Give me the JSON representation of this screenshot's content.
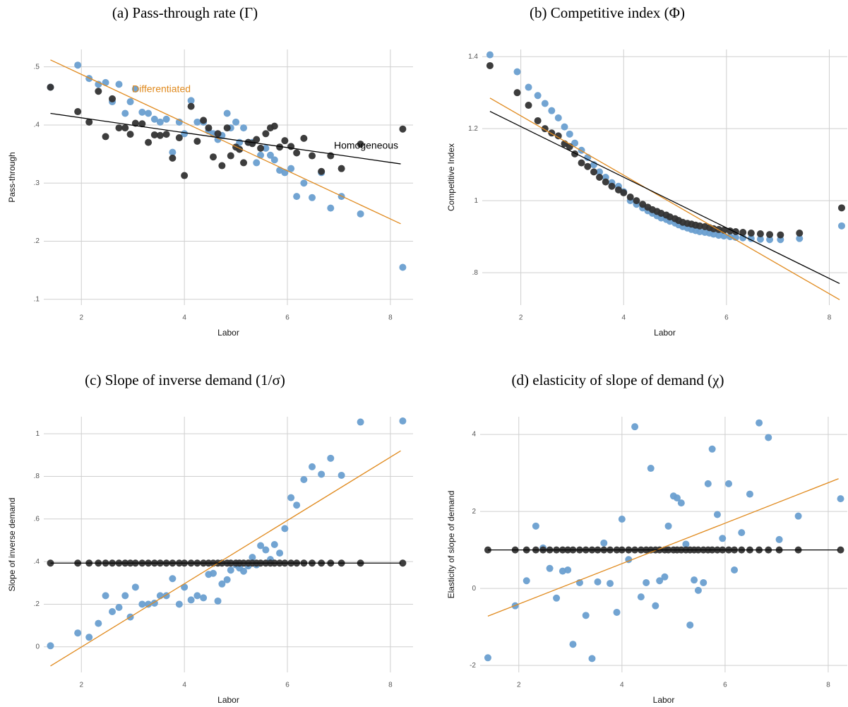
{
  "chart_data": [
    {
      "type": "scatter",
      "title": "(a) Pass-through rate (Γ)",
      "xlabel": "Labor",
      "ylabel": "Pass-through",
      "xlim": [
        1.27,
        8.44
      ],
      "ylim": [
        0.09,
        0.53
      ],
      "xticks": [
        2,
        4,
        6,
        8
      ],
      "yticks": [
        {
          "value": 0.1,
          "label": ".1"
        },
        {
          "value": 0.2,
          "label": ".2"
        },
        {
          "value": 0.3,
          "label": ".3"
        },
        {
          "value": 0.4,
          "label": ".4"
        },
        {
          "value": 0.5,
          "label": ".5"
        }
      ],
      "grid": true,
      "x": [
        1.4,
        1.93,
        2.15,
        2.33,
        2.47,
        2.6,
        2.73,
        2.85,
        2.95,
        3.05,
        3.18,
        3.3,
        3.42,
        3.53,
        3.65,
        3.77,
        3.9,
        4.0,
        4.13,
        4.25,
        4.37,
        4.47,
        4.56,
        4.65,
        4.73,
        4.83,
        4.9,
        5.0,
        5.07,
        5.15,
        5.24,
        5.32,
        5.4,
        5.48,
        5.58,
        5.67,
        5.75,
        5.85,
        5.95,
        6.07,
        6.18,
        6.32,
        6.48,
        6.66,
        6.84,
        7.05,
        7.42,
        8.24
      ],
      "series": [
        {
          "color": "#6a9fd0",
          "values": [
            0.465,
            0.503,
            0.48,
            0.47,
            0.473,
            0.44,
            0.47,
            0.42,
            0.44,
            0.462,
            0.422,
            0.42,
            0.41,
            0.405,
            0.41,
            0.353,
            0.405,
            0.385,
            0.442,
            0.405,
            0.405,
            0.39,
            0.385,
            0.375,
            0.382,
            0.42,
            0.395,
            0.405,
            0.37,
            0.395,
            0.37,
            0.37,
            0.335,
            0.348,
            0.36,
            0.348,
            0.34,
            0.322,
            0.318,
            0.325,
            0.277,
            0.3,
            0.275,
            0.318,
            0.257,
            0.277,
            0.247,
            0.155
          ]
        },
        {
          "color": "#333333",
          "values": [
            0.465,
            0.423,
            0.405,
            0.458,
            0.38,
            0.445,
            0.395,
            0.395,
            0.384,
            0.403,
            0.402,
            0.37,
            0.383,
            0.382,
            0.384,
            0.343,
            0.378,
            0.313,
            0.432,
            0.372,
            0.408,
            0.395,
            0.345,
            0.385,
            0.33,
            0.395,
            0.347,
            0.362,
            0.358,
            0.335,
            0.37,
            0.368,
            0.375,
            0.36,
            0.385,
            0.395,
            0.398,
            0.362,
            0.373,
            0.363,
            0.352,
            0.377,
            0.347,
            0.32,
            0.347,
            0.325,
            0.367,
            0.393
          ]
        },
        {
          "name": "Differentiated",
          "kind": "line",
          "color": "#e08a1e",
          "x": [
            1.4,
            8.2
          ],
          "values": [
            0.512,
            0.23
          ]
        },
        {
          "name": "Homogeneous",
          "kind": "line",
          "color": "#000000",
          "x": [
            1.4,
            8.2
          ],
          "values": [
            0.42,
            0.333
          ]
        }
      ]
    },
    {
      "type": "scatter",
      "title": "(b) Competitive index (Φ)",
      "xlabel": "Labor",
      "ylabel": "Competitive Index",
      "xlim": [
        1.25,
        8.35
      ],
      "ylim": [
        0.71,
        1.42
      ],
      "xticks": [
        2,
        4,
        6,
        8
      ],
      "yticks": [
        {
          "value": 0.8,
          "label": ".8"
        },
        1,
        1.2,
        1.4
      ],
      "grid": true,
      "x": [
        1.4,
        1.93,
        2.15,
        2.33,
        2.47,
        2.6,
        2.73,
        2.85,
        2.95,
        3.05,
        3.18,
        3.3,
        3.42,
        3.53,
        3.65,
        3.77,
        3.9,
        4.0,
        4.13,
        4.25,
        4.37,
        4.47,
        4.56,
        4.65,
        4.73,
        4.83,
        4.9,
        5.0,
        5.07,
        5.15,
        5.24,
        5.32,
        5.4,
        5.48,
        5.58,
        5.67,
        5.75,
        5.85,
        5.95,
        6.07,
        6.18,
        6.32,
        6.48,
        6.66,
        6.84,
        7.05,
        7.42,
        8.24
      ],
      "series": [
        {
          "color": "#6a9fd0",
          "values": [
            1.405,
            1.358,
            1.315,
            1.292,
            1.27,
            1.25,
            1.23,
            1.205,
            1.185,
            1.16,
            1.14,
            1.12,
            1.1,
            1.08,
            1.065,
            1.05,
            1.04,
            1.025,
            1.0,
            0.99,
            0.98,
            0.972,
            0.965,
            0.958,
            0.952,
            0.948,
            0.943,
            0.938,
            0.933,
            0.928,
            0.924,
            0.92,
            0.917,
            0.914,
            0.912,
            0.91,
            0.907,
            0.904,
            0.902,
            0.9,
            0.898,
            0.897,
            0.895,
            0.893,
            0.892,
            0.892,
            0.895,
            0.93
          ]
        },
        {
          "color": "#333333",
          "values": [
            1.375,
            1.3,
            1.265,
            1.222,
            1.2,
            1.188,
            1.18,
            1.158,
            1.15,
            1.13,
            1.105,
            1.095,
            1.08,
            1.065,
            1.052,
            1.04,
            1.03,
            1.022,
            1.01,
            1.0,
            0.99,
            0.982,
            0.975,
            0.97,
            0.965,
            0.96,
            0.955,
            0.95,
            0.945,
            0.94,
            0.937,
            0.935,
            0.932,
            0.93,
            0.928,
            0.925,
            0.922,
            0.92,
            0.918,
            0.916,
            0.914,
            0.912,
            0.91,
            0.908,
            0.906,
            0.905,
            0.91,
            0.98
          ]
        },
        {
          "kind": "line",
          "color": "#e08a1e",
          "x": [
            1.4,
            8.2
          ],
          "values": [
            1.285,
            0.725
          ]
        },
        {
          "kind": "line",
          "color": "#000000",
          "x": [
            1.4,
            8.2
          ],
          "values": [
            1.248,
            0.77
          ]
        }
      ]
    },
    {
      "type": "scatter",
      "title": "(c) Slope of inverse demand (1/σ)",
      "xlabel": "Labor",
      "ylabel": "Slope of inverse demand",
      "xlim": [
        1.27,
        8.44
      ],
      "ylim": [
        -0.12,
        1.08
      ],
      "xticks": [
        2,
        4,
        6,
        8
      ],
      "yticks": [
        0,
        {
          "value": 0.2,
          "label": ".2"
        },
        {
          "value": 0.4,
          "label": ".4"
        },
        {
          "value": 0.6,
          "label": ".6"
        },
        {
          "value": 0.8,
          "label": ".8"
        },
        1
      ],
      "grid": true,
      "x": [
        1.4,
        1.93,
        2.15,
        2.33,
        2.47,
        2.6,
        2.73,
        2.85,
        2.95,
        3.05,
        3.18,
        3.3,
        3.42,
        3.53,
        3.65,
        3.77,
        3.9,
        4.0,
        4.13,
        4.25,
        4.37,
        4.47,
        4.56,
        4.65,
        4.73,
        4.83,
        4.9,
        5.0,
        5.07,
        5.15,
        5.24,
        5.32,
        5.4,
        5.48,
        5.58,
        5.67,
        5.75,
        5.85,
        5.95,
        6.07,
        6.18,
        6.32,
        6.48,
        6.66,
        6.84,
        7.05,
        7.42,
        8.24
      ],
      "series": [
        {
          "color": "#6a9fd0",
          "values": [
            0.005,
            0.065,
            0.045,
            0.11,
            0.24,
            0.165,
            0.185,
            0.24,
            0.14,
            0.28,
            0.2,
            0.2,
            0.205,
            0.24,
            0.24,
            0.32,
            0.2,
            0.28,
            0.22,
            0.24,
            0.23,
            0.34,
            0.345,
            0.215,
            0.295,
            0.315,
            0.36,
            0.385,
            0.37,
            0.355,
            0.38,
            0.42,
            0.385,
            0.475,
            0.455,
            0.41,
            0.48,
            0.44,
            0.555,
            0.7,
            0.665,
            0.785,
            0.845,
            0.81,
            0.885,
            0.805,
            1.055,
            1.06
          ]
        },
        {
          "color": "#333333",
          "values": [
            0.393,
            0.393,
            0.393,
            0.393,
            0.393,
            0.393,
            0.393,
            0.393,
            0.393,
            0.393,
            0.393,
            0.393,
            0.393,
            0.393,
            0.393,
            0.393,
            0.393,
            0.393,
            0.393,
            0.393,
            0.393,
            0.393,
            0.393,
            0.393,
            0.393,
            0.393,
            0.393,
            0.393,
            0.393,
            0.393,
            0.393,
            0.393,
            0.393,
            0.393,
            0.393,
            0.393,
            0.393,
            0.393,
            0.393,
            0.393,
            0.393,
            0.393,
            0.393,
            0.393,
            0.393,
            0.393,
            0.393,
            0.393
          ]
        },
        {
          "kind": "line",
          "color": "#e08a1e",
          "x": [
            1.4,
            8.2
          ],
          "values": [
            -0.09,
            0.92
          ]
        },
        {
          "kind": "line",
          "color": "#000000",
          "x": [
            1.4,
            8.2
          ],
          "values": [
            0.393,
            0.393
          ]
        }
      ]
    },
    {
      "type": "scatter",
      "title": "(d) elasticity of slope of demand (χ)",
      "xlabel": "Labor",
      "ylabel": "Elasticity of slope of demand",
      "xlim": [
        1.25,
        8.37
      ],
      "ylim": [
        -2.18,
        4.46
      ],
      "xticks": [
        2,
        4,
        6,
        8
      ],
      "yticks": [
        -2,
        0,
        2,
        4
      ],
      "grid": true,
      "x": [
        1.4,
        1.93,
        2.15,
        2.33,
        2.47,
        2.6,
        2.73,
        2.85,
        2.95,
        3.05,
        3.18,
        3.3,
        3.42,
        3.53,
        3.65,
        3.77,
        3.9,
        4.0,
        4.13,
        4.25,
        4.37,
        4.47,
        4.56,
        4.65,
        4.73,
        4.83,
        4.9,
        5.0,
        5.07,
        5.15,
        5.24,
        5.32,
        5.4,
        5.48,
        5.58,
        5.67,
        5.75,
        5.85,
        5.95,
        6.07,
        6.18,
        6.32,
        6.48,
        6.66,
        6.84,
        7.05,
        7.42,
        8.24
      ],
      "series": [
        {
          "color": "#6a9fd0",
          "values": [
            -1.8,
            -0.45,
            0.2,
            1.62,
            1.05,
            0.52,
            -0.25,
            0.45,
            0.48,
            -1.45,
            0.15,
            -0.7,
            -1.82,
            0.17,
            1.18,
            0.13,
            -0.62,
            1.8,
            0.75,
            4.2,
            -0.22,
            0.15,
            3.12,
            -0.45,
            0.2,
            0.3,
            1.62,
            2.4,
            2.35,
            2.22,
            1.15,
            -0.95,
            0.22,
            -0.05,
            0.15,
            2.72,
            3.62,
            1.92,
            1.3,
            2.72,
            0.48,
            1.45,
            2.45,
            4.3,
            3.92,
            1.27,
            1.88,
            2.33
          ]
        },
        {
          "color": "#333333",
          "values": [
            1,
            1,
            1,
            1,
            1,
            1,
            1,
            1,
            1,
            1,
            1,
            1,
            1,
            1,
            1,
            1,
            1,
            1,
            1,
            1,
            1,
            1,
            1,
            1,
            1,
            1,
            1,
            1,
            1,
            1,
            1,
            1,
            1,
            1,
            1,
            1,
            1,
            1,
            1,
            1,
            1,
            1,
            1,
            1,
            1,
            1,
            1,
            1
          ]
        },
        {
          "kind": "line",
          "color": "#e08a1e",
          "x": [
            1.4,
            8.2
          ],
          "values": [
            -0.72,
            2.85
          ]
        },
        {
          "kind": "line",
          "color": "#000000",
          "x": [
            1.4,
            8.2
          ],
          "values": [
            1,
            1
          ]
        }
      ]
    }
  ]
}
